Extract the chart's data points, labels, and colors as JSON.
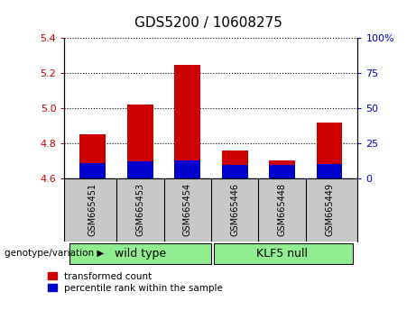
{
  "title": "GDS5200 / 10608275",
  "samples": [
    "GSM665451",
    "GSM665453",
    "GSM665454",
    "GSM665446",
    "GSM665448",
    "GSM665449"
  ],
  "ylim_left": [
    4.6,
    5.4
  ],
  "ylim_right": [
    0,
    100
  ],
  "yticks_left": [
    4.6,
    4.8,
    5.0,
    5.2,
    5.4
  ],
  "yticks_right": [
    0,
    25,
    50,
    75,
    100
  ],
  "ytick_labels_right": [
    "0",
    "25",
    "50",
    "75",
    "100%"
  ],
  "base": 4.6,
  "red_tops": [
    4.85,
    5.02,
    5.25,
    4.76,
    4.7,
    4.92
  ],
  "blue_tops": [
    4.685,
    4.695,
    4.7,
    4.675,
    4.675,
    4.682
  ],
  "red_color": "#cc0000",
  "blue_color": "#0000cc",
  "bar_width": 0.55,
  "label_red": "transformed count",
  "label_blue": "percentile rank within the sample",
  "genotype_label": "genotype/variation",
  "left_tick_color": "#cc0000",
  "right_tick_color": "#0000cc",
  "group_fill_color": "#90ee90",
  "sample_bg_color": "#c8c8c8",
  "wt_samples": [
    0,
    1,
    2
  ],
  "klf_samples": [
    3,
    4,
    5
  ],
  "wt_label": "wild type",
  "klf_label": "KLF5 null"
}
